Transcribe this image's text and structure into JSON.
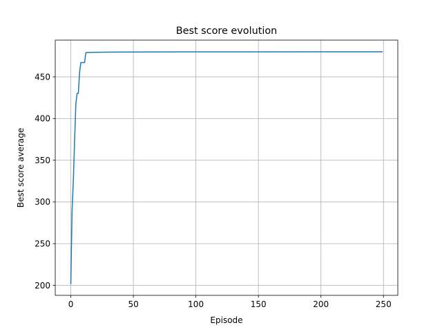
{
  "chart_data": {
    "type": "line",
    "title": "Best score evolution",
    "xlabel": "Episode",
    "ylabel": "Best score average",
    "xlim": [
      -12.45,
      261.45
    ],
    "ylim": [
      188.0,
      494.0
    ],
    "xticks": [
      0,
      50,
      100,
      150,
      200,
      250
    ],
    "yticks": [
      200,
      250,
      300,
      350,
      400,
      450
    ],
    "grid": true,
    "legend": "none",
    "series": [
      {
        "color": "#1f77b4",
        "x": [
          0,
          1,
          2,
          3,
          4,
          5,
          6,
          7,
          8,
          9,
          10,
          11,
          12,
          13,
          15,
          20,
          25,
          30,
          40,
          60,
          100,
          150,
          200,
          249
        ],
        "y": [
          202,
          290,
          325,
          372,
          417,
          430,
          430,
          455,
          467,
          467,
          467,
          467,
          479,
          479.2,
          479.3,
          479.4,
          479.5,
          479.6,
          479.7,
          479.8,
          479.9,
          479.9,
          480,
          480
        ]
      }
    ]
  }
}
